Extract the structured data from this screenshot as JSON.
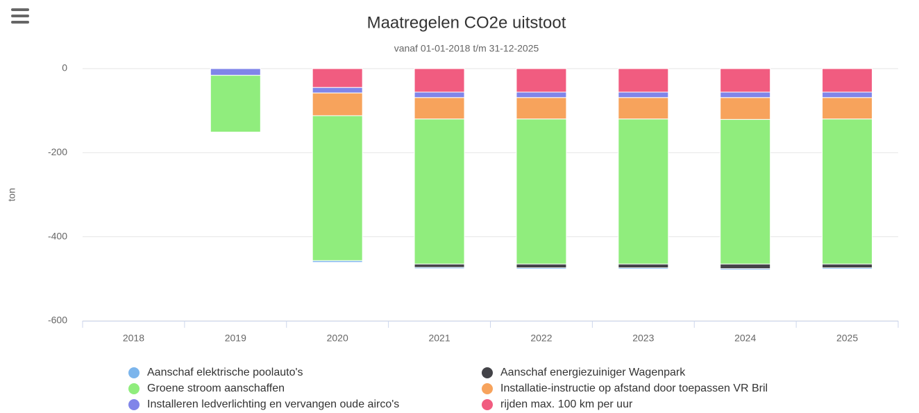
{
  "chart_data": {
    "type": "stacked-bar",
    "title": "Maatregelen CO2e uitstoot",
    "subtitle": "vanaf 01-01-2018 t/m 31-12-2025",
    "y_axis_label": "ton",
    "categories": [
      "2018",
      "2019",
      "2020",
      "2021",
      "2022",
      "2023",
      "2024",
      "2025"
    ],
    "series": [
      {
        "name": "Aanschaf elektrische poolauto's",
        "color": "#7cb5ec",
        "values": [
          null,
          null,
          -4,
          -3,
          -3,
          -3,
          -3,
          -3
        ]
      },
      {
        "name": "Aanschaf energiezuiniger Wagenpark",
        "color": "#434348",
        "values": [
          null,
          null,
          null,
          -8,
          -9,
          -9,
          -11,
          -9
        ]
      },
      {
        "name": "Groene stroom aanschaffen",
        "color": "#90ed7d",
        "values": [
          null,
          -135,
          -345,
          -345,
          -345,
          -345,
          -344,
          -345
        ]
      },
      {
        "name": "Installatie-instructie op afstand door toepassen VR Bril",
        "color": "#f7a35c",
        "values": [
          null,
          null,
          -54,
          -51,
          -51,
          -51,
          -52,
          -51
        ]
      },
      {
        "name": "Installeren ledverlichting en vervangen oude airco's",
        "color": "#8085e9",
        "values": [
          null,
          -16,
          -13,
          -13,
          -13,
          -13,
          -13,
          -13
        ]
      },
      {
        "name": "rijden max. 100 km per uur",
        "color": "#f15c80",
        "values": [
          null,
          null,
          -45,
          -56,
          -56,
          -56,
          -56,
          -56
        ]
      }
    ],
    "ylim": [
      -600,
      0
    ],
    "yticks": [
      -600,
      -400,
      -200,
      0
    ],
    "grid": true
  }
}
